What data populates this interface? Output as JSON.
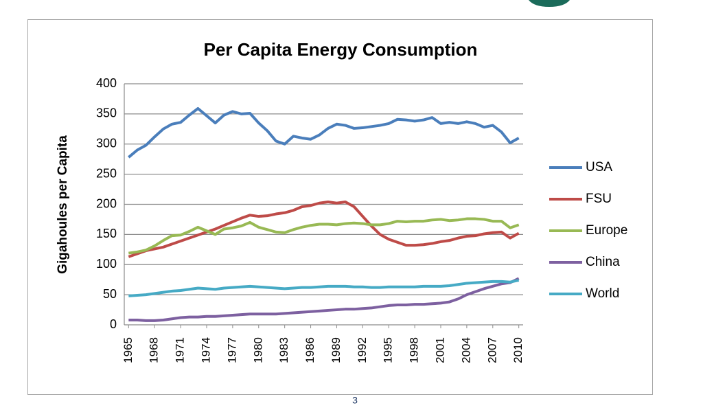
{
  "chart_data": {
    "type": "line",
    "title": "Per Capita Energy Consumption",
    "y_label": "Gigahoules per Capita",
    "x": [
      1965,
      1966,
      1967,
      1968,
      1969,
      1970,
      1971,
      1972,
      1973,
      1974,
      1975,
      1976,
      1977,
      1978,
      1979,
      1980,
      1981,
      1982,
      1983,
      1984,
      1985,
      1986,
      1987,
      1988,
      1989,
      1990,
      1991,
      1992,
      1993,
      1994,
      1995,
      1996,
      1997,
      1998,
      1999,
      2000,
      2001,
      2002,
      2003,
      2004,
      2005,
      2006,
      2007,
      2008,
      2009,
      2010
    ],
    "xlim": [
      1964.5,
      2010.5
    ],
    "xticks": [
      1965,
      1968,
      1971,
      1974,
      1977,
      1980,
      1983,
      1986,
      1989,
      1992,
      1995,
      1998,
      2001,
      2004,
      2007,
      2010
    ],
    "ylim": [
      0,
      400
    ],
    "yticks": [
      0,
      50,
      100,
      150,
      200,
      250,
      300,
      350,
      400
    ],
    "grid": true,
    "legend": "right",
    "series": [
      {
        "name": "USA",
        "color": "#4a7ebb",
        "values": [
          278,
          290,
          298,
          312,
          325,
          333,
          336,
          348,
          359,
          347,
          335,
          348,
          354,
          350,
          351,
          335,
          322,
          305,
          300,
          313,
          310,
          308,
          315,
          326,
          333,
          331,
          326,
          327,
          329,
          331,
          334,
          341,
          340,
          338,
          340,
          344,
          334,
          336,
          334,
          337,
          334,
          328,
          331,
          320,
          302,
          310
        ]
      },
      {
        "name": "FSU",
        "color": "#be4b48",
        "values": [
          113,
          118,
          123,
          126,
          129,
          134,
          139,
          144,
          149,
          154,
          159,
          165,
          171,
          177,
          182,
          180,
          181,
          184,
          186,
          190,
          196,
          198,
          202,
          204,
          202,
          204,
          196,
          180,
          164,
          150,
          142,
          137,
          132,
          132,
          133,
          135,
          138,
          140,
          144,
          147,
          148,
          151,
          153,
          154,
          144,
          152
        ]
      },
      {
        "name": "Europe",
        "color": "#98b954",
        "values": [
          119,
          121,
          124,
          131,
          140,
          148,
          149,
          155,
          162,
          156,
          150,
          159,
          161,
          164,
          170,
          162,
          158,
          154,
          153,
          158,
          162,
          165,
          167,
          167,
          166,
          168,
          169,
          168,
          166,
          166,
          168,
          172,
          171,
          172,
          172,
          174,
          175,
          173,
          174,
          176,
          176,
          175,
          172,
          172,
          161,
          166
        ]
      },
      {
        "name": "China",
        "color": "#7d60a0",
        "values": [
          8,
          8,
          7,
          7,
          8,
          10,
          12,
          13,
          13,
          14,
          14,
          15,
          16,
          17,
          18,
          18,
          18,
          18,
          19,
          20,
          21,
          22,
          23,
          24,
          25,
          26,
          26,
          27,
          28,
          30,
          32,
          33,
          33,
          34,
          34,
          35,
          36,
          38,
          43,
          50,
          55,
          60,
          64,
          68,
          70,
          77
        ]
      },
      {
        "name": "World",
        "color": "#46aac5",
        "values": [
          48,
          49,
          50,
          52,
          54,
          56,
          57,
          59,
          61,
          60,
          59,
          61,
          62,
          63,
          64,
          63,
          62,
          61,
          60,
          61,
          62,
          62,
          63,
          64,
          64,
          64,
          63,
          63,
          62,
          62,
          63,
          63,
          63,
          63,
          64,
          64,
          64,
          65,
          67,
          69,
          70,
          71,
          72,
          72,
          71,
          74
        ]
      }
    ]
  },
  "page_number": "3"
}
